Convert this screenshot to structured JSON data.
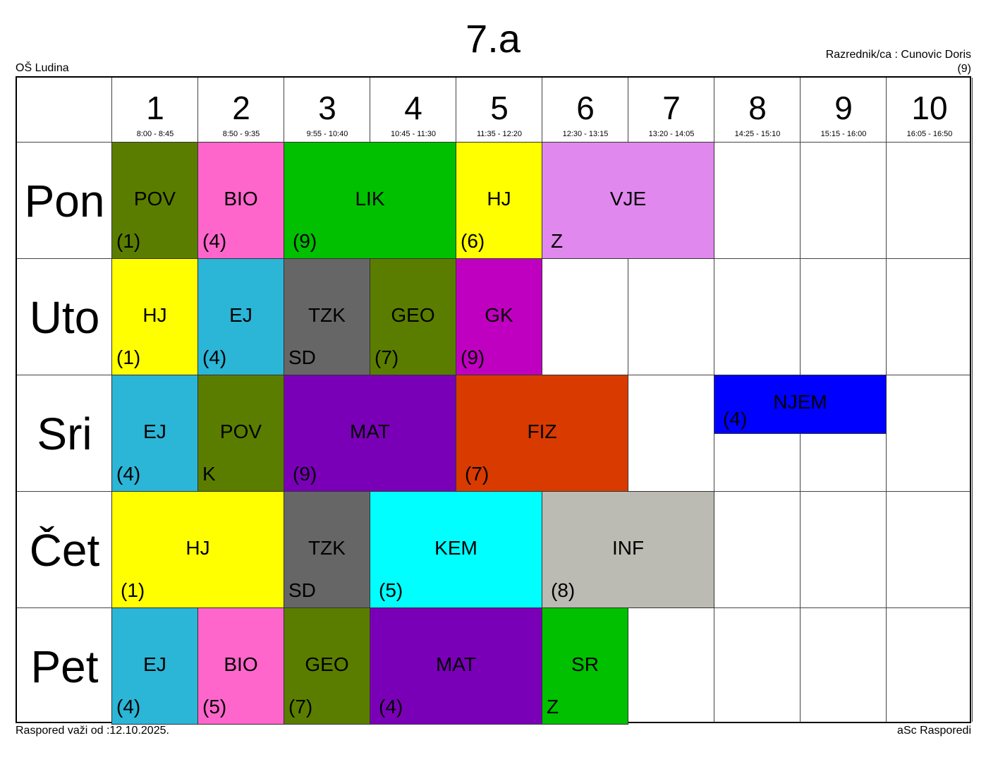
{
  "title": "7.a",
  "school": "OŠ Ludina",
  "teacher": "Razrednik/ca : Cunovic Doris",
  "teacher_room": "(9)",
  "valid_from": "Raspored važi od :12.10.2025.",
  "brand": "aSc Rasporedi",
  "periods": [
    {
      "n": "1",
      "time": "8:00 - 8:45"
    },
    {
      "n": "2",
      "time": "8:50 - 9:35"
    },
    {
      "n": "3",
      "time": "9:55 - 10:40"
    },
    {
      "n": "4",
      "time": "10:45 - 11:30"
    },
    {
      "n": "5",
      "time": "11:35 - 12:20"
    },
    {
      "n": "6",
      "time": "12:30 - 13:15"
    },
    {
      "n": "7",
      "time": "13:20 - 14:05"
    },
    {
      "n": "8",
      "time": "14:25 - 15:10"
    },
    {
      "n": "9",
      "time": "15:15 - 16:00"
    },
    {
      "n": "10",
      "time": "16:05 - 16:50"
    }
  ],
  "days": [
    "Pon",
    "Uto",
    "Sri",
    "Čet",
    "Pet"
  ],
  "lessons": [
    {
      "day": 0,
      "start": 1,
      "span": 1,
      "subject": "POV",
      "room": "(1)",
      "color": "#5a7d00"
    },
    {
      "day": 0,
      "start": 2,
      "span": 1,
      "subject": "BIO",
      "room": "(4)",
      "color": "#ff66cc"
    },
    {
      "day": 0,
      "start": 3,
      "span": 2,
      "subject": "LIK",
      "room": "(9)",
      "color": "#00c000"
    },
    {
      "day": 0,
      "start": 5,
      "span": 1,
      "subject": "HJ",
      "room": "(6)",
      "color": "#ffff00"
    },
    {
      "day": 0,
      "start": 6,
      "span": 2,
      "subject": "VJE",
      "room": "Z",
      "color": "#e088ee"
    },
    {
      "day": 1,
      "start": 1,
      "span": 1,
      "subject": "HJ",
      "room": "(1)",
      "color": "#ffff00"
    },
    {
      "day": 1,
      "start": 2,
      "span": 1,
      "subject": "EJ",
      "room": "(4)",
      "color": "#2bb5d6"
    },
    {
      "day": 1,
      "start": 3,
      "span": 1,
      "subject": "TZK",
      "room": "SD",
      "color": "#666666"
    },
    {
      "day": 1,
      "start": 4,
      "span": 1,
      "subject": "GEO",
      "room": "(7)",
      "color": "#5a7d00"
    },
    {
      "day": 1,
      "start": 5,
      "span": 1,
      "subject": "GK",
      "room": "(9)",
      "color": "#c000c0"
    },
    {
      "day": 2,
      "start": 1,
      "span": 1,
      "subject": "EJ",
      "room": "(4)",
      "color": "#2bb5d6"
    },
    {
      "day": 2,
      "start": 2,
      "span": 1,
      "subject": "POV",
      "room": "K",
      "color": "#5a7d00"
    },
    {
      "day": 2,
      "start": 3,
      "span": 2,
      "subject": "MAT",
      "room": "(9)",
      "color": "#7a00b8"
    },
    {
      "day": 2,
      "start": 5,
      "span": 2,
      "subject": "FIZ",
      "room": "(7)",
      "color": "#d93a00"
    },
    {
      "day": 2,
      "start": 8,
      "span": 2,
      "subject": "NJEM",
      "room": "(4)",
      "color": "#0000ff",
      "half": true
    },
    {
      "day": 3,
      "start": 1,
      "span": 2,
      "subject": "HJ",
      "room": "(1)",
      "color": "#ffff00"
    },
    {
      "day": 3,
      "start": 3,
      "span": 1,
      "subject": "TZK",
      "room": "SD",
      "color": "#666666"
    },
    {
      "day": 3,
      "start": 4,
      "span": 2,
      "subject": "KEM",
      "room": "(5)",
      "color": "#00ffff"
    },
    {
      "day": 3,
      "start": 6,
      "span": 2,
      "subject": "INF",
      "room": "(8)",
      "color": "#bcbbb3"
    },
    {
      "day": 4,
      "start": 1,
      "span": 1,
      "subject": "EJ",
      "room": "(4)",
      "color": "#2bb5d6"
    },
    {
      "day": 4,
      "start": 2,
      "span": 1,
      "subject": "BIO",
      "room": "(5)",
      "color": "#ff66cc"
    },
    {
      "day": 4,
      "start": 3,
      "span": 1,
      "subject": "GEO",
      "room": "(7)",
      "color": "#5a7d00"
    },
    {
      "day": 4,
      "start": 4,
      "span": 2,
      "subject": "MAT",
      "room": "(4)",
      "color": "#7a00b8"
    },
    {
      "day": 4,
      "start": 6,
      "span": 1,
      "subject": "SR",
      "room": "Z",
      "color": "#00c000"
    }
  ]
}
